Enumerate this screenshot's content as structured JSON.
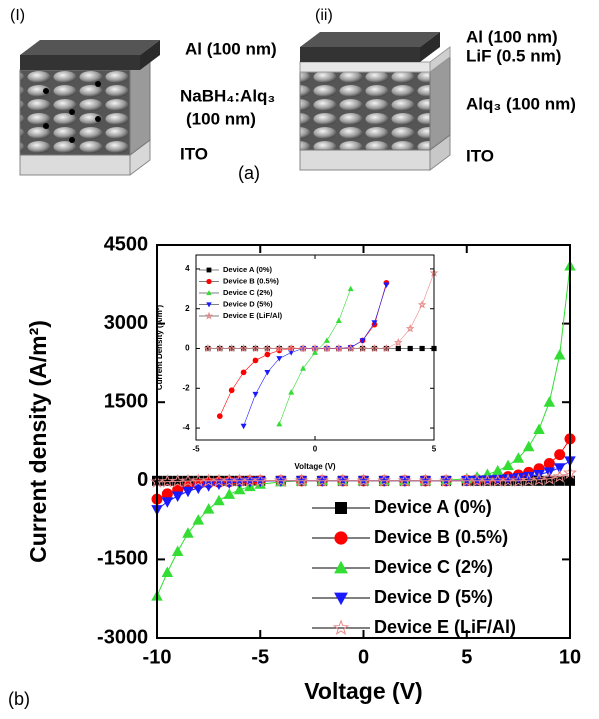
{
  "figure": {
    "panel_a": {
      "label": "(a)",
      "device_i": {
        "label": "(I)",
        "al": "Al (100 nm)",
        "layer": "NaBH₄:Alq₃",
        "layer_thickness": "(100 nm)",
        "ito": "ITO"
      },
      "device_ii": {
        "label": "(ii)",
        "al": "Al (100 nm)",
        "lif": "LiF (0.5 nm)",
        "layer": "Alq₃ (100 nm)",
        "ito": "ITO"
      }
    },
    "panel_b": {
      "label": "(b)"
    }
  },
  "chart_data": [
    {
      "type": "line",
      "x_label": "Voltage (V)",
      "y_label": "Current density (A/m²)",
      "xlim": [
        -10,
        10
      ],
      "ylim": [
        -3000,
        4500
      ],
      "xticks": [
        -10,
        -5,
        0,
        5,
        10
      ],
      "yticks": [
        -3000,
        -1500,
        0,
        1500,
        3000,
        4500
      ],
      "legend": "lower right",
      "x": [
        -10,
        -9.5,
        -9,
        -8.5,
        -8,
        -7.5,
        -7,
        -6.5,
        -6,
        -5.5,
        -5,
        -4,
        -3,
        -2,
        -1,
        0,
        1,
        2,
        3,
        4,
        5,
        5.5,
        6,
        6.5,
        7,
        7.5,
        8,
        8.5,
        9,
        9.5,
        10
      ],
      "series": [
        {
          "name": "Device A (0%)",
          "color": "#000000",
          "marker": "square",
          "values": [
            0,
            0,
            0,
            0,
            0,
            0,
            0,
            0,
            0,
            0,
            0,
            0,
            0,
            0,
            0,
            0,
            0,
            0,
            0,
            0,
            0,
            0,
            0,
            0,
            0,
            0,
            0,
            0,
            0,
            0,
            0
          ]
        },
        {
          "name": "Device B (0.5%)",
          "color": "#ff0000",
          "marker": "circle",
          "values": [
            -350,
            -250,
            -170,
            -110,
            -70,
            -40,
            -25,
            -15,
            -8,
            -4,
            -2,
            0,
            0,
            0,
            0,
            0,
            0,
            0,
            0,
            0,
            10,
            20,
            35,
            55,
            80,
            110,
            160,
            230,
            330,
            500,
            800
          ]
        },
        {
          "name": "Device C (2%)",
          "color": "#33dd33",
          "marker": "triangle",
          "values": [
            -2200,
            -1750,
            -1350,
            -1000,
            -750,
            -540,
            -380,
            -260,
            -170,
            -110,
            -65,
            -20,
            -5,
            0,
            0,
            0,
            0,
            0,
            0,
            10,
            40,
            70,
            120,
            190,
            290,
            430,
            650,
            980,
            1500,
            2400,
            4100
          ]
        },
        {
          "name": "Device D (5%)",
          "color": "#1a1aff",
          "marker": "triangle-down",
          "values": [
            -550,
            -400,
            -290,
            -200,
            -140,
            -95,
            -60,
            -40,
            -25,
            -15,
            -8,
            -2,
            0,
            0,
            0,
            0,
            0,
            0,
            0,
            0,
            5,
            10,
            18,
            28,
            40,
            60,
            85,
            120,
            170,
            250,
            380
          ]
        },
        {
          "name": "Device E (LiF/Al)",
          "color": "#e88a8a",
          "marker": "star",
          "values": [
            -20,
            -15,
            -10,
            -5,
            0,
            0,
            0,
            0,
            0,
            0,
            0,
            0,
            0,
            0,
            0,
            0,
            0,
            0,
            0,
            0,
            0,
            0,
            0,
            0,
            0,
            0,
            10,
            20,
            40,
            80,
            150
          ]
        }
      ]
    },
    {
      "type": "line",
      "x_label": "Voltage (V)",
      "y_label": "Current Density (A/m²)",
      "xlim": [
        -5,
        5
      ],
      "ylim": [
        -4.6,
        4.7
      ],
      "xticks": [
        -5,
        0,
        5
      ],
      "yticks": [
        -4,
        -2,
        0,
        2,
        4
      ],
      "legend": "upper left",
      "x": [
        -4.5,
        -4,
        -3.5,
        -3,
        -2.5,
        -2,
        -1.5,
        -1,
        -0.5,
        0,
        0.5,
        1,
        1.5,
        2,
        2.5,
        3,
        3.5,
        4,
        4.5,
        5
      ],
      "series": [
        {
          "name": "Device A (0%)",
          "color": "#000000",
          "marker": "square",
          "values": [
            0,
            0,
            0,
            0,
            0,
            0,
            0,
            0,
            0,
            0,
            0,
            0,
            0,
            0,
            0,
            0,
            0,
            0,
            0,
            0
          ]
        },
        {
          "name": "Device B (0.5%)",
          "color": "#ff0000",
          "marker": "circle",
          "values": [
            null,
            -3.4,
            -2.1,
            -1.2,
            -0.6,
            -0.3,
            -0.1,
            0,
            0,
            0,
            0,
            0,
            0.05,
            0.4,
            1.2,
            3.3,
            null,
            null,
            null,
            null
          ]
        },
        {
          "name": "Device C (2%)",
          "color": "#33dd33",
          "marker": "triangle",
          "values": [
            null,
            null,
            null,
            null,
            null,
            null,
            -3.8,
            -2.2,
            -1,
            -0.2,
            0.4,
            1.4,
            3,
            null,
            null,
            null,
            null,
            null,
            null,
            null
          ]
        },
        {
          "name": "Device D (5%)",
          "color": "#1a1aff",
          "marker": "triangle-down",
          "values": [
            null,
            null,
            null,
            -3.9,
            -2.3,
            -1.2,
            -0.5,
            -0.2,
            0,
            0,
            0,
            0,
            0.05,
            0.4,
            1.3,
            3.2,
            null,
            null,
            null,
            null
          ]
        },
        {
          "name": "Device E (LiF/Al)",
          "color": "#e88a8a",
          "marker": "star",
          "values": [
            0,
            0,
            0,
            0,
            0,
            0,
            0,
            0,
            0,
            0,
            0,
            0,
            0,
            0,
            0,
            0,
            0.3,
            1,
            2.2,
            3.8
          ]
        }
      ]
    }
  ]
}
